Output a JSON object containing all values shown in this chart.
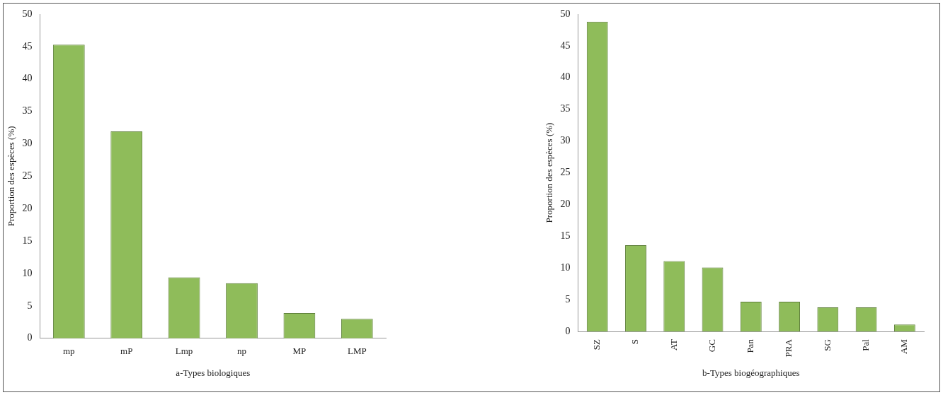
{
  "chart_data": [
    {
      "type": "bar",
      "xlabel": "a-Types biologiques",
      "ylabel": "Proportion des espèces (%)",
      "categories": [
        "mp",
        "mP",
        "Lmp",
        "np",
        "MP",
        "LMP"
      ],
      "values": [
        45.3,
        31.9,
        9.4,
        8.5,
        3.9,
        3.0
      ],
      "color": "#8fbc5a",
      "ylim": [
        0,
        50
      ],
      "yticks": [
        0,
        5,
        10,
        15,
        20,
        25,
        30,
        35,
        40,
        45,
        50
      ],
      "grid": false,
      "legend": false
    },
    {
      "type": "bar",
      "xlabel": "b-Types biogéographiques",
      "ylabel": "Proportion des espèces (%)",
      "categories": [
        "SZ",
        "S",
        "AT",
        "GC",
        "Pan",
        "PRA",
        "SG",
        "Pal",
        "AM"
      ],
      "values": [
        48.8,
        13.6,
        11.1,
        10.1,
        4.7,
        4.7,
        3.8,
        3.8,
        1.1
      ],
      "color": "#8fbc5a",
      "ylim": [
        0,
        50
      ],
      "yticks": [
        0,
        5,
        10,
        15,
        20,
        25,
        30,
        35,
        40,
        45,
        50
      ],
      "grid": false,
      "legend": false
    }
  ]
}
